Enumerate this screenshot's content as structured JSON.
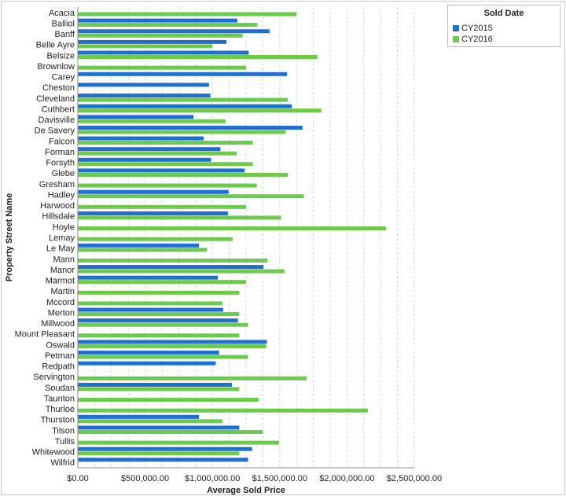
{
  "chart_data": {
    "type": "bar",
    "orientation": "horizontal",
    "title": "",
    "xlabel": "Average Sold Price",
    "ylabel": "Property Street Name",
    "xlim": [
      0,
      2500000
    ],
    "x_ticks": [
      "$0.00",
      "$500,000.00",
      "$1,000,000.00",
      "$1,500,000.00",
      "$2,000,000.00",
      "$2,500,000.00"
    ],
    "grid": "vertical dashed",
    "legend": {
      "title": "Sold Date",
      "position": "top-right"
    },
    "categories": [
      "Acacia",
      "Balliol",
      "Banff",
      "Belle Ayre",
      "Belsize",
      "Brownlow",
      "Carey",
      "Cheston",
      "Cleveland",
      "Cuthbert",
      "Davisville",
      "De Savery",
      "Falcon",
      "Forman",
      "Forsyth",
      "Glebe",
      "Gresham",
      "Hadley",
      "Harwood",
      "Hillsdale",
      "Hoyle",
      "Lemay",
      "Le May",
      "Mann",
      "Manor",
      "Marmot",
      "Martin",
      "Mccord",
      "Merton",
      "Millwood",
      "Mount Pleasant",
      "Oswald",
      "Petman",
      "Redpath",
      "Servington",
      "Soudan",
      "Taunton",
      "Thurloe",
      "Thurston",
      "Tilson",
      "Tullis",
      "Whitewood",
      "Wilfrid"
    ],
    "series": [
      {
        "name": "CY2015",
        "color": "#1f6fd1",
        "values": [
          null,
          1185000,
          1425000,
          1105000,
          1270000,
          null,
          1555000,
          975000,
          985000,
          1590000,
          860000,
          1670000,
          935000,
          1060000,
          990000,
          1240000,
          null,
          1120000,
          null,
          1115000,
          null,
          null,
          900000,
          null,
          1380000,
          1040000,
          null,
          null,
          1080000,
          1190000,
          null,
          1405000,
          1050000,
          1025000,
          null,
          1145000,
          null,
          null,
          900000,
          1200000,
          null,
          1295000,
          1265000
        ]
      },
      {
        "name": "CY2016",
        "color": "#6ec94f",
        "values": [
          1625000,
          1335000,
          1225000,
          1000000,
          1780000,
          1250000,
          null,
          null,
          1560000,
          1810000,
          1100000,
          1545000,
          1300000,
          1180000,
          1300000,
          1560000,
          1330000,
          1680000,
          1250000,
          1510000,
          2290000,
          1150000,
          960000,
          1410000,
          1535000,
          1250000,
          1200000,
          1075000,
          1200000,
          1265000,
          1200000,
          1400000,
          1265000,
          null,
          1700000,
          1200000,
          1345000,
          2155000,
          1075000,
          1375000,
          1495000,
          1200000,
          null
        ]
      }
    ]
  }
}
